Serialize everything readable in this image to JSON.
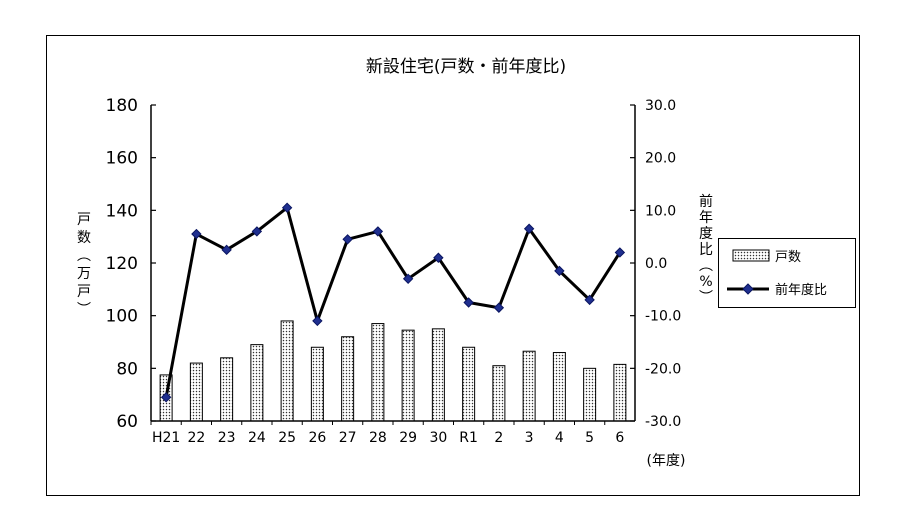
{
  "chart_data": {
    "type": "bar+line",
    "title": "新設住宅(戸数・前年度比)",
    "categories": [
      "H21",
      "22",
      "23",
      "24",
      "25",
      "26",
      "27",
      "28",
      "29",
      "30",
      "R1",
      "2",
      "3",
      "4",
      "5",
      "6"
    ],
    "xlabel": "(年度)",
    "ylabel_left": [
      "戸",
      "数",
      "︵",
      "万",
      "戸",
      "︶"
    ],
    "ylabel_right": [
      "前",
      "年",
      "度",
      "比",
      "︵",
      "%",
      "︶"
    ],
    "y_left": {
      "min": 60,
      "max": 180,
      "ticks": [
        "60",
        "80",
        "100",
        "120",
        "140",
        "160",
        "180"
      ]
    },
    "y_right": {
      "min": -30,
      "max": 30,
      "ticks": [
        "-30.0",
        "-20.0",
        "-10.0",
        "0.0",
        "10.0",
        "20.0",
        "30.0"
      ]
    },
    "series": [
      {
        "name": "戸数",
        "type": "bar",
        "axis": "left",
        "values": [
          77.5,
          82,
          84,
          89,
          98,
          88,
          92,
          97,
          94.5,
          95,
          88,
          81,
          86.5,
          86,
          80,
          81.5
        ]
      },
      {
        "name": "前年度比",
        "type": "line",
        "axis": "right",
        "values": [
          -25.5,
          5.5,
          2.5,
          6,
          10.5,
          -11,
          4.5,
          6,
          -3,
          1,
          -7.5,
          -8.5,
          6.5,
          -1.5,
          -7,
          2
        ]
      }
    ],
    "legend": {
      "placement": "right",
      "entries": [
        "戸数",
        "前年度比"
      ]
    },
    "grid": false
  }
}
